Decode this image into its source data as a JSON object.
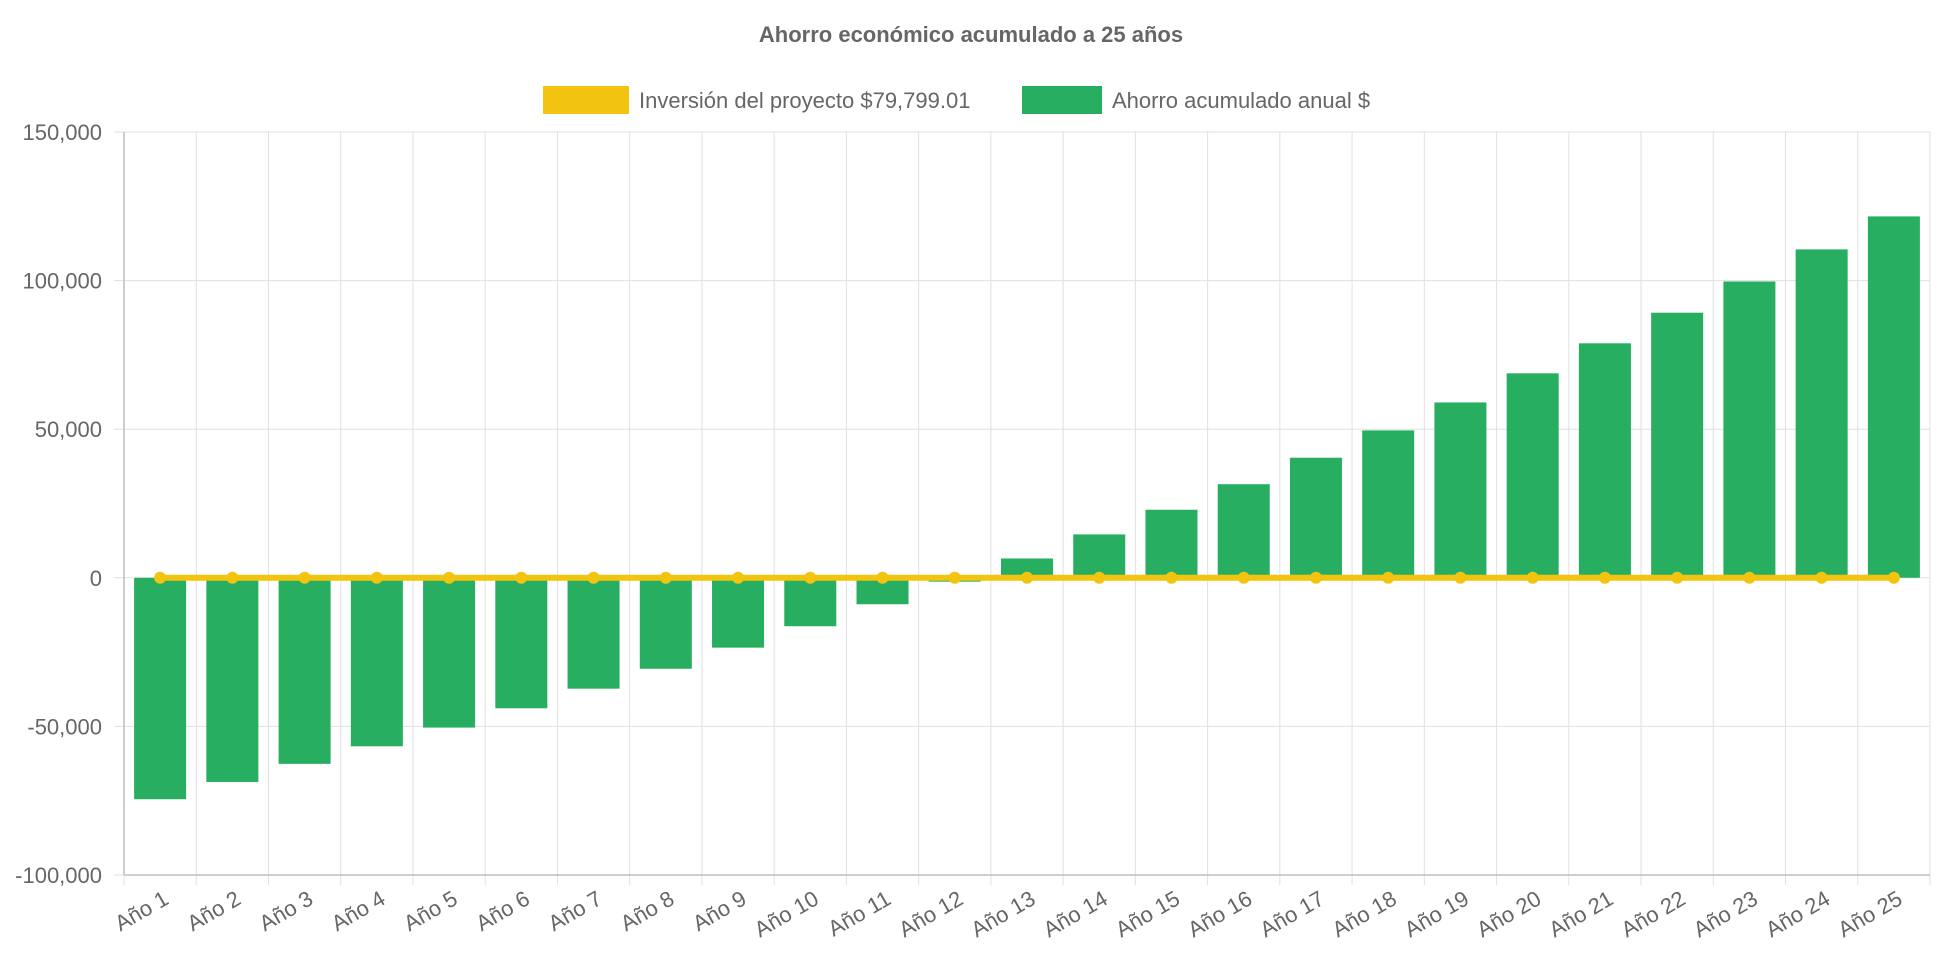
{
  "chart_data": {
    "type": "bar",
    "title": "Ahorro económico acumulado a 25 años",
    "categories": [
      "Año 1",
      "Año 2",
      "Año 3",
      "Año 4",
      "Año 5",
      "Año 6",
      "Año 7",
      "Año 8",
      "Año 9",
      "Año 10",
      "Año 11",
      "Año 12",
      "Año 13",
      "Año 14",
      "Año 15",
      "Año 16",
      "Año 17",
      "Año 18",
      "Año 19",
      "Año 20",
      "Año 21",
      "Año 22",
      "Año 23",
      "Año 24",
      "Año 25"
    ],
    "series": [
      {
        "name": "Inversión del proyecto $79,799.01",
        "type": "line",
        "color": "#f2c40f",
        "values": [
          0,
          0,
          0,
          0,
          0,
          0,
          0,
          0,
          0,
          0,
          0,
          0,
          0,
          0,
          0,
          0,
          0,
          0,
          0,
          0,
          0,
          0,
          0,
          0,
          0
        ]
      },
      {
        "name": "Ahorro acumulado anual $",
        "type": "bar",
        "color": "#27ae60",
        "values": [
          -74500,
          -68700,
          -62600,
          -56700,
          -50400,
          -43900,
          -37300,
          -30600,
          -23500,
          -16300,
          -8900,
          -1300,
          6500,
          14600,
          22900,
          31500,
          40400,
          49600,
          59000,
          68800,
          78900,
          89200,
          99700,
          110500,
          121600
        ]
      }
    ],
    "ylim": [
      -100000,
      150000
    ],
    "yticks": [
      -100000,
      -50000,
      0,
      50000,
      100000,
      150000
    ],
    "ytick_labels": [
      "-100,000",
      "-50,000",
      "0",
      "50,000",
      "100,000",
      "150,000"
    ],
    "xlabel": "",
    "ylabel": "",
    "grid": true,
    "legend_position": "top-center"
  }
}
